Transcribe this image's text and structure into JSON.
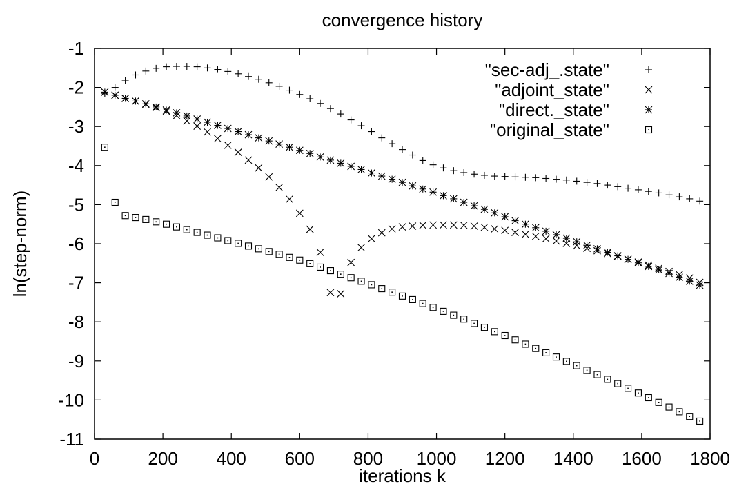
{
  "chart_data": {
    "type": "scatter",
    "title": "convergence history",
    "xlabel": "iterations k",
    "ylabel": "ln(step-norm)",
    "xlim": [
      0,
      1800
    ],
    "ylim": [
      -11,
      -1
    ],
    "xticks": [
      0,
      200,
      400,
      600,
      800,
      1000,
      1200,
      1400,
      1600,
      1800
    ],
    "yticks": [
      -1,
      -2,
      -3,
      -4,
      -5,
      -6,
      -7,
      -8,
      -9,
      -10,
      -11
    ],
    "grid": false,
    "legend_position": "top-right",
    "series": [
      {
        "name": "\"sec-adj_.state\"",
        "marker": "plus",
        "x": [
          30,
          60,
          90,
          120,
          150,
          180,
          210,
          240,
          270,
          300,
          330,
          360,
          390,
          420,
          450,
          480,
          510,
          540,
          570,
          600,
          630,
          660,
          690,
          720,
          750,
          780,
          810,
          840,
          870,
          900,
          930,
          960,
          990,
          1020,
          1050,
          1080,
          1110,
          1140,
          1170,
          1200,
          1230,
          1260,
          1290,
          1320,
          1350,
          1380,
          1410,
          1440,
          1470,
          1500,
          1530,
          1560,
          1590,
          1620,
          1650,
          1680,
          1710,
          1740,
          1770
        ],
        "y": [
          -2.15,
          -2.0,
          -1.83,
          -1.68,
          -1.58,
          -1.51,
          -1.47,
          -1.46,
          -1.46,
          -1.47,
          -1.5,
          -1.54,
          -1.59,
          -1.65,
          -1.72,
          -1.79,
          -1.88,
          -1.97,
          -2.07,
          -2.18,
          -2.29,
          -2.41,
          -2.54,
          -2.68,
          -2.83,
          -2.98,
          -3.13,
          -3.29,
          -3.44,
          -3.59,
          -3.73,
          -3.87,
          -3.98,
          -4.06,
          -4.13,
          -4.18,
          -4.22,
          -4.25,
          -4.27,
          -4.28,
          -4.29,
          -4.3,
          -4.31,
          -4.33,
          -4.35,
          -4.37,
          -4.4,
          -4.43,
          -4.46,
          -4.5,
          -4.54,
          -4.58,
          -4.62,
          -4.66,
          -4.7,
          -4.75,
          -4.8,
          -4.85,
          -4.91
        ]
      },
      {
        "name": "\"adjoint_state\"",
        "marker": "cross",
        "x": [
          30,
          60,
          90,
          120,
          150,
          180,
          210,
          240,
          270,
          300,
          330,
          360,
          390,
          420,
          450,
          480,
          510,
          540,
          570,
          600,
          630,
          660,
          690,
          720,
          750,
          780,
          810,
          840,
          870,
          900,
          930,
          960,
          990,
          1020,
          1050,
          1080,
          1110,
          1140,
          1170,
          1200,
          1230,
          1260,
          1290,
          1320,
          1350,
          1380,
          1410,
          1440,
          1470,
          1500,
          1530,
          1560,
          1590,
          1620,
          1650,
          1680,
          1710,
          1740,
          1770
        ],
        "y": [
          -2.12,
          -2.2,
          -2.28,
          -2.35,
          -2.43,
          -2.52,
          -2.61,
          -2.72,
          -2.86,
          -2.99,
          -3.14,
          -3.31,
          -3.48,
          -3.66,
          -3.86,
          -4.06,
          -4.29,
          -4.56,
          -4.86,
          -5.22,
          -5.63,
          -6.22,
          -7.25,
          -7.28,
          -6.48,
          -6.1,
          -5.87,
          -5.72,
          -5.62,
          -5.57,
          -5.55,
          -5.53,
          -5.52,
          -5.52,
          -5.52,
          -5.53,
          -5.55,
          -5.58,
          -5.62,
          -5.66,
          -5.71,
          -5.76,
          -5.81,
          -5.87,
          -5.93,
          -5.99,
          -6.05,
          -6.12,
          -6.18,
          -6.25,
          -6.32,
          -6.4,
          -6.47,
          -6.55,
          -6.63,
          -6.71,
          -6.79,
          -6.88,
          -6.99
        ]
      },
      {
        "name": "\"direct._state\"",
        "marker": "star",
        "x": [
          30,
          60,
          90,
          120,
          150,
          180,
          210,
          240,
          270,
          300,
          330,
          360,
          390,
          420,
          450,
          480,
          510,
          540,
          570,
          600,
          630,
          660,
          690,
          720,
          750,
          780,
          810,
          840,
          870,
          900,
          930,
          960,
          990,
          1020,
          1050,
          1080,
          1110,
          1140,
          1170,
          1200,
          1230,
          1260,
          1290,
          1320,
          1350,
          1380,
          1410,
          1440,
          1470,
          1500,
          1530,
          1560,
          1590,
          1620,
          1650,
          1680,
          1710,
          1740,
          1770
        ],
        "y": [
          -2.12,
          -2.2,
          -2.28,
          -2.35,
          -2.42,
          -2.5,
          -2.58,
          -2.65,
          -2.73,
          -2.81,
          -2.89,
          -2.97,
          -3.05,
          -3.13,
          -3.21,
          -3.29,
          -3.37,
          -3.45,
          -3.53,
          -3.61,
          -3.69,
          -3.78,
          -3.86,
          -3.94,
          -4.02,
          -4.1,
          -4.19,
          -4.27,
          -4.35,
          -4.43,
          -4.52,
          -4.6,
          -4.68,
          -4.77,
          -4.85,
          -4.94,
          -5.03,
          -5.12,
          -5.21,
          -5.31,
          -5.41,
          -5.5,
          -5.59,
          -5.68,
          -5.77,
          -5.86,
          -5.95,
          -6.04,
          -6.13,
          -6.22,
          -6.31,
          -6.4,
          -6.49,
          -6.58,
          -6.67,
          -6.76,
          -6.86,
          -6.96,
          -7.06
        ]
      },
      {
        "name": "\"original_state\"",
        "marker": "square",
        "x": [
          30,
          60,
          90,
          120,
          150,
          180,
          210,
          240,
          270,
          300,
          330,
          360,
          390,
          420,
          450,
          480,
          510,
          540,
          570,
          600,
          630,
          660,
          690,
          720,
          750,
          780,
          810,
          840,
          870,
          900,
          930,
          960,
          990,
          1020,
          1050,
          1080,
          1110,
          1140,
          1170,
          1200,
          1230,
          1260,
          1290,
          1320,
          1350,
          1380,
          1410,
          1440,
          1470,
          1500,
          1530,
          1560,
          1590,
          1620,
          1650,
          1680,
          1710,
          1740,
          1770
        ],
        "y": [
          -3.53,
          -4.94,
          -5.28,
          -5.33,
          -5.38,
          -5.44,
          -5.5,
          -5.57,
          -5.64,
          -5.71,
          -5.78,
          -5.85,
          -5.92,
          -5.99,
          -6.06,
          -6.13,
          -6.2,
          -6.27,
          -6.35,
          -6.42,
          -6.51,
          -6.6,
          -6.69,
          -6.78,
          -6.87,
          -6.96,
          -7.05,
          -7.15,
          -7.24,
          -7.34,
          -7.43,
          -7.53,
          -7.63,
          -7.73,
          -7.83,
          -7.93,
          -8.04,
          -8.14,
          -8.25,
          -8.35,
          -8.46,
          -8.57,
          -8.68,
          -8.79,
          -8.9,
          -9.01,
          -9.12,
          -9.24,
          -9.35,
          -9.47,
          -9.58,
          -9.7,
          -9.82,
          -9.94,
          -10.06,
          -10.18,
          -10.3,
          -10.42,
          -10.54
        ]
      }
    ]
  }
}
